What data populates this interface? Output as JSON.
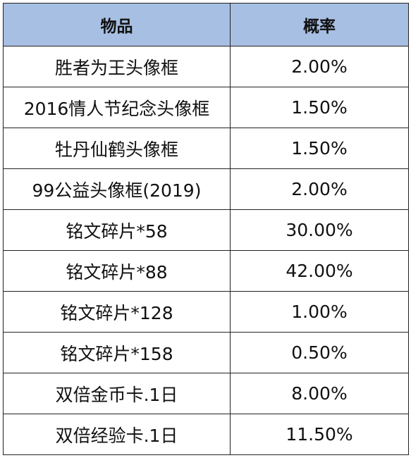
{
  "header": {
    "item_label": "物品",
    "prob_label": "概率"
  },
  "rows": [
    {
      "item": "胜者为王头像框",
      "prob": "2.00%"
    },
    {
      "item": "2016情人节纪念头像框",
      "prob": "1.50%"
    },
    {
      "item": "牡丹仙鹤头像框",
      "prob": "1.50%"
    },
    {
      "item": "99公益头像框(2019)",
      "prob": "2.00%"
    },
    {
      "item": "铭文碎片*58",
      "prob": "30.00%"
    },
    {
      "item": "铭文碎片*88",
      "prob": "42.00%"
    },
    {
      "item": "铭文碎片*128",
      "prob": "1.00%"
    },
    {
      "item": "铭文碎片*158",
      "prob": "0.50%"
    },
    {
      "item": "双倍金币卡.1日",
      "prob": "8.00%"
    },
    {
      "item": "双倍经验卡.1日",
      "prob": "11.50%"
    }
  ],
  "colors": {
    "header_bg": "#a7bfe2",
    "border": "#222222"
  }
}
